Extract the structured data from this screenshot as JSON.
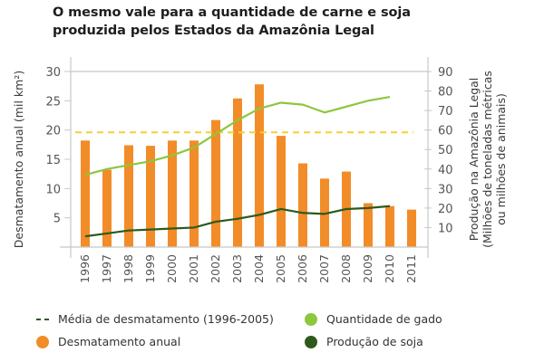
{
  "title": "O mesmo vale para a quantidade de carne e soja produzida pelos Estados da Amazônia Legal",
  "colors": {
    "deforestation": "#f28c28",
    "average": "#f5d033",
    "cattle": "#8dc63f",
    "soy": "#2d5a1b",
    "axis": "#c8c8c8",
    "legend_dash": "#2d5a1b"
  },
  "chart_data": {
    "type": "bar",
    "title": "O mesmo vale para a quantidade de carne e soja produzida pelos Estados da Amazônia Legal",
    "categories": [
      "1996",
      "1997",
      "1998",
      "1999",
      "2000",
      "2001",
      "2002",
      "2003",
      "2004",
      "2005",
      "2006",
      "2007",
      "2008",
      "2009",
      "2010",
      "2011"
    ],
    "ylabel": "Desmatamento anual (mil km²)",
    "ylabel_right": [
      "Produção na Amazônia Legal",
      "(Milhões de toneladas métricas",
      "ou milhões de animais)"
    ],
    "ylim": [
      0,
      30
    ],
    "ylim_right": [
      0,
      90
    ],
    "yticks": [
      5,
      10,
      15,
      20,
      25,
      30
    ],
    "yticks_right": [
      10,
      20,
      30,
      40,
      50,
      60,
      70,
      80,
      90
    ],
    "grid": "top line only",
    "series": [
      {
        "name": "Desmatamento anual",
        "type": "bar",
        "axis": "left",
        "values": [
          18.2,
          13.2,
          17.4,
          17.3,
          18.2,
          18.2,
          21.7,
          25.4,
          27.8,
          19.0,
          14.3,
          11.7,
          12.9,
          7.5,
          7.0,
          6.4
        ]
      },
      {
        "name": "Média de desmatamento (1996-2005)",
        "type": "hline",
        "axis": "left",
        "value": 19.6
      },
      {
        "name": "Quantidade de gado",
        "type": "line",
        "axis": "right",
        "values": [
          37,
          40,
          42,
          44,
          47,
          51,
          58,
          65,
          71,
          74,
          73,
          69,
          72,
          75,
          77,
          null
        ]
      },
      {
        "name": "Produção de soja",
        "type": "line",
        "axis": "right",
        "values": [
          5.5,
          7,
          8.5,
          9,
          9.5,
          10,
          13,
          14.5,
          16.5,
          19.5,
          17.5,
          17,
          19.5,
          20,
          21,
          null
        ]
      }
    ],
    "legend": {
      "placement": "bottom",
      "items": [
        {
          "label": "Média de desmatamento (1996-2005)",
          "marker": "dash"
        },
        {
          "label": "Quantidade de gado",
          "marker": "dot"
        },
        {
          "label": "Desmatamento anual",
          "marker": "dot"
        },
        {
          "label": "Produção de soja",
          "marker": "dot"
        }
      ]
    }
  }
}
